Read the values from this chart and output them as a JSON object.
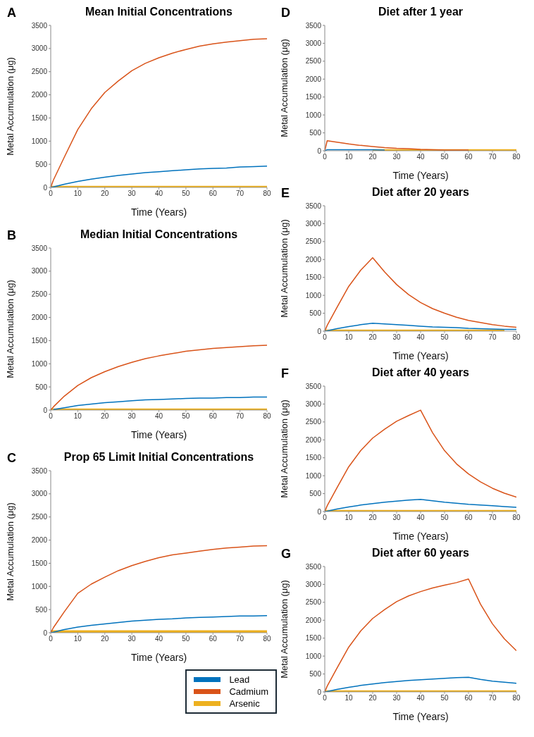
{
  "chart_data": [
    {
      "type": "line",
      "title": "Mean Initial Concentrations",
      "annotations": [
        "A"
      ],
      "xlabel": "Time (Years)",
      "ylabel": "Metal Accumulation (μg)",
      "x": [
        0,
        1,
        5,
        10,
        15,
        20,
        25,
        30,
        35,
        40,
        45,
        50,
        55,
        60,
        65,
        70,
        75,
        80
      ],
      "xlim": [
        0,
        80
      ],
      "xticks": [
        0,
        10,
        20,
        30,
        40,
        50,
        60,
        70,
        80
      ],
      "ylim": [
        0,
        3500
      ],
      "yticks": [
        0,
        500,
        1000,
        1500,
        2000,
        2500,
        3000,
        3500
      ],
      "marker": "none",
      "line_style": "solid",
      "series": [
        {
          "color": "#0072bd",
          "values": [
            0,
            10,
            70,
            130,
            180,
            220,
            260,
            290,
            320,
            340,
            360,
            380,
            400,
            410,
            420,
            440,
            450,
            460
          ]
        },
        {
          "color": "#d95319",
          "values": [
            0,
            160,
            650,
            1250,
            1700,
            2050,
            2300,
            2520,
            2680,
            2800,
            2900,
            2980,
            3050,
            3100,
            3140,
            3170,
            3200,
            3210
          ]
        },
        {
          "color": "#edb120",
          "values": [
            0,
            0,
            0,
            0,
            0,
            0,
            0,
            0,
            0,
            0,
            0,
            0,
            0,
            0,
            0,
            0,
            0,
            0
          ]
        }
      ]
    },
    {
      "type": "line",
      "title": "Median Initial Concentrations",
      "annotations": [
        "B"
      ],
      "xlabel": "Time (Years)",
      "ylabel": "Metal Accumulation (μg)",
      "x": [
        0,
        1,
        5,
        10,
        15,
        20,
        25,
        30,
        35,
        40,
        45,
        50,
        55,
        60,
        65,
        70,
        75,
        80
      ],
      "xlim": [
        0,
        80
      ],
      "xticks": [
        0,
        10,
        20,
        30,
        40,
        50,
        60,
        70,
        80
      ],
      "ylim": [
        0,
        3500
      ],
      "yticks": [
        0,
        500,
        1000,
        1500,
        2000,
        2500,
        3000,
        3500
      ],
      "marker": "none",
      "line_style": "solid",
      "series": [
        {
          "color": "#0072bd",
          "values": [
            null,
            10,
            50,
            100,
            130,
            160,
            180,
            200,
            220,
            230,
            240,
            250,
            260,
            260,
            270,
            270,
            280,
            280
          ]
        },
        {
          "color": "#d95319",
          "values": [
            0,
            70,
            300,
            530,
            700,
            830,
            940,
            1030,
            1110,
            1170,
            1220,
            1270,
            1300,
            1330,
            1350,
            1370,
            1390,
            1400
          ]
        },
        {
          "color": "#edb120",
          "values": [
            0,
            0,
            0,
            0,
            0,
            0,
            0,
            0,
            0,
            0,
            0,
            0,
            0,
            0,
            0,
            0,
            0,
            0
          ]
        }
      ]
    },
    {
      "type": "line",
      "title": "Prop 65 Limit Initial Concentrations",
      "annotations": [
        "C"
      ],
      "xlabel": "Time (Years)",
      "ylabel": "Metal Accumulation (μg)",
      "x": [
        0,
        1,
        5,
        10,
        15,
        20,
        25,
        30,
        35,
        40,
        45,
        50,
        55,
        60,
        65,
        70,
        75,
        80
      ],
      "xlim": [
        0,
        80
      ],
      "xticks": [
        0,
        10,
        20,
        30,
        40,
        50,
        60,
        70,
        80
      ],
      "ylim": [
        0,
        3500
      ],
      "yticks": [
        0,
        500,
        1000,
        1500,
        2000,
        2500,
        3000,
        3500
      ],
      "marker": "none",
      "line_style": "solid",
      "legend": "bottom right",
      "series": [
        {
          "name": "Lead",
          "color": "#0072bd",
          "values": [
            0,
            10,
            70,
            120,
            160,
            190,
            220,
            250,
            270,
            290,
            300,
            320,
            330,
            340,
            350,
            360,
            360,
            370
          ]
        },
        {
          "name": "Cadmium",
          "color": "#d95319",
          "values": [
            0,
            110,
            450,
            850,
            1050,
            1200,
            1340,
            1450,
            1540,
            1620,
            1680,
            1720,
            1760,
            1800,
            1830,
            1850,
            1870,
            1880
          ]
        },
        {
          "name": "Arsenic",
          "color": "#edb120",
          "values": [
            20,
            20,
            20,
            20,
            20,
            20,
            20,
            20,
            20,
            20,
            20,
            20,
            20,
            20,
            20,
            20,
            20,
            20
          ]
        }
      ]
    },
    {
      "type": "line",
      "title": "Diet after 1 year",
      "annotations": [
        "D"
      ],
      "xlabel": "Time (Years)",
      "ylabel": "Metal Accumulation (μg)",
      "x": [
        0,
        1,
        5,
        10,
        15,
        20,
        25,
        30,
        35,
        40,
        45,
        50,
        55,
        60,
        65,
        70,
        75,
        80
      ],
      "xlim": [
        0,
        80
      ],
      "xticks": [
        0,
        10,
        20,
        30,
        40,
        50,
        60,
        70,
        80
      ],
      "ylim": [
        0,
        3500
      ],
      "yticks": [
        0,
        500,
        1000,
        1500,
        2000,
        2500,
        3000,
        3500
      ],
      "marker": "none",
      "line_style": "solid",
      "series": [
        {
          "color": "#0072bd",
          "values": [
            0,
            30,
            30,
            30,
            30,
            30,
            20,
            null,
            null,
            null,
            null,
            null,
            null,
            null,
            null,
            null,
            null,
            null
          ]
        },
        {
          "color": "#d95319",
          "values": [
            0,
            280,
            240,
            190,
            150,
            120,
            90,
            70,
            60,
            40,
            30,
            20,
            20,
            20,
            null,
            null,
            null,
            null
          ]
        },
        {
          "color": "#edb120",
          "values": [
            null,
            null,
            null,
            null,
            null,
            0,
            0,
            0,
            0,
            0,
            0,
            0,
            0,
            0,
            0,
            0,
            0,
            0
          ]
        }
      ]
    },
    {
      "type": "line",
      "title": "Diet after 20 years",
      "annotations": [
        "E"
      ],
      "xlabel": "Time (Years)",
      "ylabel": "Metal Accumulation (μg)",
      "x": [
        0,
        1,
        5,
        10,
        15,
        20,
        25,
        30,
        35,
        40,
        45,
        50,
        55,
        60,
        65,
        70,
        75,
        80
      ],
      "xlim": [
        0,
        80
      ],
      "xticks": [
        0,
        10,
        20,
        30,
        40,
        50,
        60,
        70,
        80
      ],
      "ylim": [
        0,
        3500
      ],
      "yticks": [
        0,
        500,
        1000,
        1500,
        2000,
        2500,
        3000,
        3500
      ],
      "marker": "none",
      "line_style": "solid",
      "series": [
        {
          "color": "#0072bd",
          "values": [
            0,
            10,
            70,
            130,
            180,
            220,
            200,
            180,
            160,
            140,
            120,
            110,
            100,
            80,
            70,
            60,
            50,
            50
          ]
        },
        {
          "color": "#d95319",
          "values": [
            0,
            160,
            650,
            1250,
            1700,
            2050,
            1650,
            1300,
            1020,
            800,
            630,
            500,
            390,
            300,
            240,
            180,
            140,
            110
          ]
        },
        {
          "color": "#edb120",
          "values": [
            0,
            0,
            0,
            0,
            0,
            0,
            0,
            0,
            0,
            0,
            0,
            0,
            0,
            0,
            0,
            0,
            0,
            null
          ]
        }
      ]
    },
    {
      "type": "line",
      "title": "Diet after 40 years",
      "annotations": [
        "F"
      ],
      "xlabel": "Time (Years)",
      "ylabel": "Metal Accumulation (μg)",
      "x": [
        0,
        1,
        5,
        10,
        15,
        20,
        25,
        30,
        35,
        40,
        45,
        50,
        55,
        60,
        65,
        70,
        75,
        80
      ],
      "xlim": [
        0,
        80
      ],
      "xticks": [
        0,
        10,
        20,
        30,
        40,
        50,
        60,
        70,
        80
      ],
      "ylim": [
        0,
        3500
      ],
      "yticks": [
        0,
        500,
        1000,
        1500,
        2000,
        2500,
        3000,
        3500
      ],
      "marker": "none",
      "line_style": "solid",
      "series": [
        {
          "color": "#0072bd",
          "values": [
            0,
            10,
            70,
            130,
            180,
            220,
            260,
            290,
            320,
            340,
            300,
            260,
            230,
            200,
            180,
            160,
            140,
            120
          ]
        },
        {
          "color": "#d95319",
          "values": [
            0,
            160,
            650,
            1250,
            1700,
            2050,
            2300,
            2520,
            2680,
            2830,
            2200,
            1700,
            1330,
            1050,
            830,
            650,
            510,
            400
          ]
        },
        {
          "color": "#edb120",
          "values": [
            0,
            0,
            0,
            0,
            0,
            0,
            0,
            0,
            0,
            0,
            0,
            0,
            0,
            0,
            0,
            0,
            0,
            0
          ]
        }
      ]
    },
    {
      "type": "line",
      "title": "Diet after 60 years",
      "annotations": [
        "G"
      ],
      "xlabel": "Time (Years)",
      "ylabel": "Metal Accumulation (μg)",
      "x": [
        0,
        1,
        5,
        10,
        15,
        20,
        25,
        30,
        35,
        40,
        45,
        50,
        55,
        60,
        65,
        70,
        75,
        80
      ],
      "xlim": [
        0,
        80
      ],
      "xticks": [
        0,
        10,
        20,
        30,
        40,
        50,
        60,
        70,
        80
      ],
      "ylim": [
        0,
        3500
      ],
      "yticks": [
        0,
        500,
        1000,
        1500,
        2000,
        2500,
        3000,
        3500
      ],
      "marker": "none",
      "line_style": "solid",
      "series": [
        {
          "color": "#0072bd",
          "values": [
            0,
            10,
            70,
            130,
            180,
            220,
            260,
            290,
            320,
            340,
            360,
            380,
            400,
            410,
            350,
            300,
            270,
            240
          ]
        },
        {
          "color": "#d95319",
          "values": [
            0,
            160,
            650,
            1250,
            1700,
            2050,
            2300,
            2520,
            2680,
            2800,
            2900,
            2980,
            3050,
            3150,
            2450,
            1900,
            1480,
            1150
          ]
        },
        {
          "color": "#edb120",
          "values": [
            0,
            0,
            0,
            0,
            0,
            0,
            0,
            0,
            0,
            0,
            0,
            0,
            0,
            0,
            0,
            0,
            0,
            0
          ]
        }
      ]
    }
  ]
}
